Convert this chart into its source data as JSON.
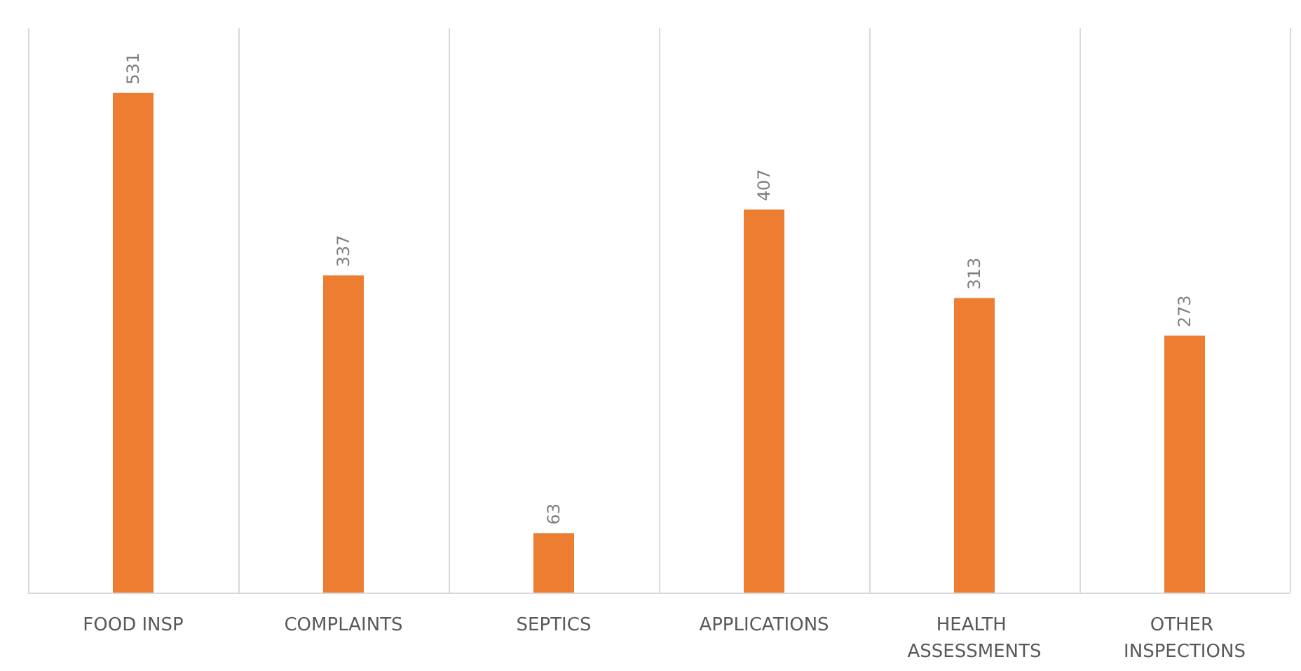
{
  "chart_data": {
    "type": "bar",
    "categories": [
      "FOOD INSP",
      "COMPLAINTS",
      "SEPTICS",
      "APPLICATIONS",
      "HEALTH ASSESSMENTS",
      "OTHER INSPECTIONS"
    ],
    "values": [
      531,
      337,
      63,
      407,
      313,
      273
    ],
    "color": "#ed7d31",
    "data_labels": true,
    "grid": "x"
  }
}
